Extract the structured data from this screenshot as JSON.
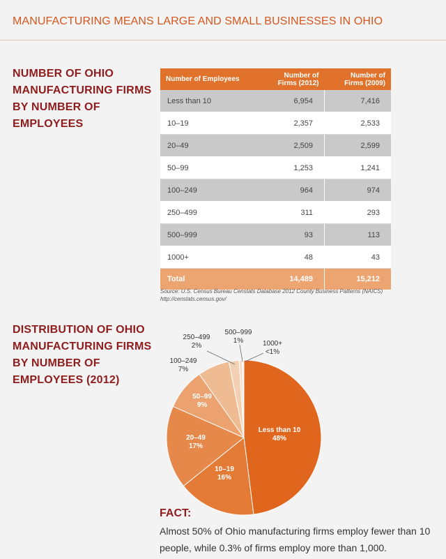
{
  "header": {
    "title": "MANUFACTURING MEANS LARGE AND SMALL BUSINESSES IN OHIO"
  },
  "table_section": {
    "title": "NUMBER OF OHIO MANUFACTURING FIRMS BY NUMBER OF EMPLOYEES",
    "columns": [
      "Number of Employees",
      "Number of Firms (2012)",
      "Number of Firms (2009)"
    ],
    "rows": [
      {
        "label": "Less than 10",
        "y2012": "6,954",
        "y2009": "7,416"
      },
      {
        "label": "10–19",
        "y2012": "2,357",
        "y2009": "2,533"
      },
      {
        "label": "20–49",
        "y2012": "2,509",
        "y2009": "2,599"
      },
      {
        "label": "50–99",
        "y2012": "1,253",
        "y2009": "1,241"
      },
      {
        "label": "100–249",
        "y2012": "964",
        "y2009": "974"
      },
      {
        "label": "250–499",
        "y2012": "311",
        "y2009": "293"
      },
      {
        "label": "500–999",
        "y2012": "93",
        "y2009": "113"
      },
      {
        "label": "1000+",
        "y2012": "48",
        "y2009": "43"
      }
    ],
    "total": {
      "label": "Total",
      "y2012": "14,489",
      "y2009": "15,212"
    },
    "source": "Source: U.S. Census Bureau Censtats Database 2012 County Business Patterns (NAICS)",
    "source_url": "http://censtats.census.gov/"
  },
  "pie_section": {
    "title": "DISTRIBUTION OF OHIO MANUFACTURING FIRMS BY NUMBER OF EMPLOYEES (2012)"
  },
  "chart_data": {
    "type": "pie",
    "title": "DISTRIBUTION OF OHIO MANUFACTURING FIRMS BY NUMBER OF EMPLOYEES (2012)",
    "slices": [
      {
        "label": "Less than 10",
        "value": 6954,
        "pct_label": "48%"
      },
      {
        "label": "10–19",
        "value": 2357,
        "pct_label": "16%"
      },
      {
        "label": "20–49",
        "value": 2509,
        "pct_label": "17%"
      },
      {
        "label": "50–99",
        "value": 1253,
        "pct_label": "9%"
      },
      {
        "label": "100–249",
        "value": 964,
        "pct_label": "7%"
      },
      {
        "label": "250–499",
        "value": 311,
        "pct_label": "2%"
      },
      {
        "label": "500–999",
        "value": 93,
        "pct_label": "1%"
      },
      {
        "label": "1000+",
        "value": 48,
        "pct_label": "<1%"
      }
    ],
    "colors": [
      "#e0651d",
      "#e37a36",
      "#e5884a",
      "#eba26e",
      "#efbb92",
      "#f3d0b4",
      "#f6dcc8",
      "#faf0e7"
    ]
  },
  "fact": {
    "title": "FACT:",
    "text": "Almost 50% of Ohio manufacturing firms employ fewer than 10 people, while 0.3% of firms employ more than 1,000."
  },
  "colors": {
    "accent": "#e0722c",
    "title_red": "#8e1c1c",
    "header_orange": "#d4561c"
  }
}
